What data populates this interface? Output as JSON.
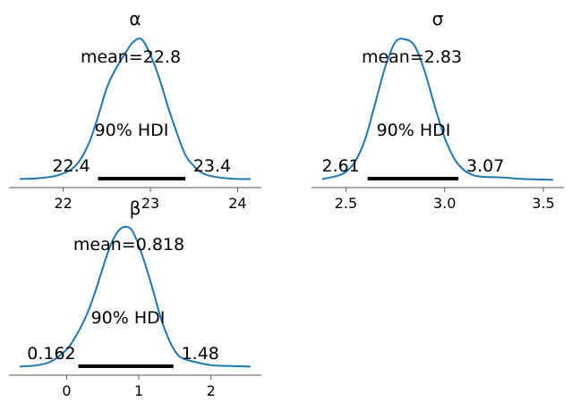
{
  "chart_data": [
    {
      "type": "line",
      "title": "α",
      "xlim": [
        21.5,
        24.15
      ],
      "xticks": [
        "22",
        "23",
        "24"
      ],
      "x": [
        21.5,
        21.7,
        21.9,
        22.0,
        22.1,
        22.2,
        22.3,
        22.4,
        22.5,
        22.6,
        22.7,
        22.8,
        22.9,
        23.0,
        23.1,
        23.2,
        23.3,
        23.4,
        23.5,
        23.6,
        23.7,
        23.8,
        24.0,
        24.15
      ],
      "y": [
        0.01,
        0.015,
        0.03,
        0.05,
        0.08,
        0.15,
        0.27,
        0.45,
        0.65,
        0.78,
        0.88,
        0.97,
        0.99,
        0.88,
        0.72,
        0.52,
        0.34,
        0.18,
        0.1,
        0.05,
        0.03,
        0.02,
        0.01,
        0.01
      ],
      "mean_label": "mean=22.8",
      "hdi_label": "90% HDI",
      "hdi": [
        22.4,
        23.4
      ],
      "hdi_low_label": "22.4",
      "hdi_high_label": "23.4",
      "color": "#1f77b4"
    },
    {
      "type": "line",
      "title": "σ",
      "xlim": [
        2.38,
        3.55
      ],
      "xticks": [
        "2.5",
        "3.0",
        "3.5"
      ],
      "x": [
        2.38,
        2.45,
        2.5,
        2.55,
        2.6,
        2.65,
        2.7,
        2.75,
        2.8,
        2.85,
        2.9,
        2.95,
        3.0,
        3.05,
        3.1,
        3.15,
        3.2,
        3.3,
        3.4,
        3.55
      ],
      "y": [
        0.01,
        0.03,
        0.06,
        0.14,
        0.3,
        0.55,
        0.8,
        0.97,
        0.99,
        0.94,
        0.76,
        0.52,
        0.3,
        0.15,
        0.07,
        0.035,
        0.025,
        0.02,
        0.01,
        0.005
      ],
      "mean_label": "mean=2.83",
      "hdi_label": "90% HDI",
      "hdi": [
        2.61,
        3.07
      ],
      "hdi_low_label": "2.61",
      "hdi_high_label": "3.07",
      "color": "#1f77b4"
    },
    {
      "type": "line",
      "title": "β",
      "xlim": [
        -0.65,
        2.55
      ],
      "xticks": [
        "0",
        "1",
        "2"
      ],
      "x": [
        -0.65,
        -0.4,
        -0.2,
        0.0,
        0.1,
        0.2,
        0.3,
        0.4,
        0.5,
        0.6,
        0.7,
        0.8,
        0.9,
        1.0,
        1.1,
        1.2,
        1.3,
        1.4,
        1.5,
        1.6,
        1.8,
        2.0,
        2.2,
        2.55
      ],
      "y": [
        0.01,
        0.02,
        0.05,
        0.13,
        0.2,
        0.29,
        0.4,
        0.54,
        0.7,
        0.85,
        0.95,
        0.99,
        0.97,
        0.86,
        0.71,
        0.54,
        0.36,
        0.22,
        0.12,
        0.07,
        0.04,
        0.02,
        0.015,
        0.01
      ],
      "mean_label": "mean=0.818",
      "hdi_label": "90% HDI",
      "hdi": [
        0.162,
        1.48
      ],
      "hdi_low_label": "0.162",
      "hdi_high_label": "1.48",
      "color": "#1f77b4"
    }
  ]
}
